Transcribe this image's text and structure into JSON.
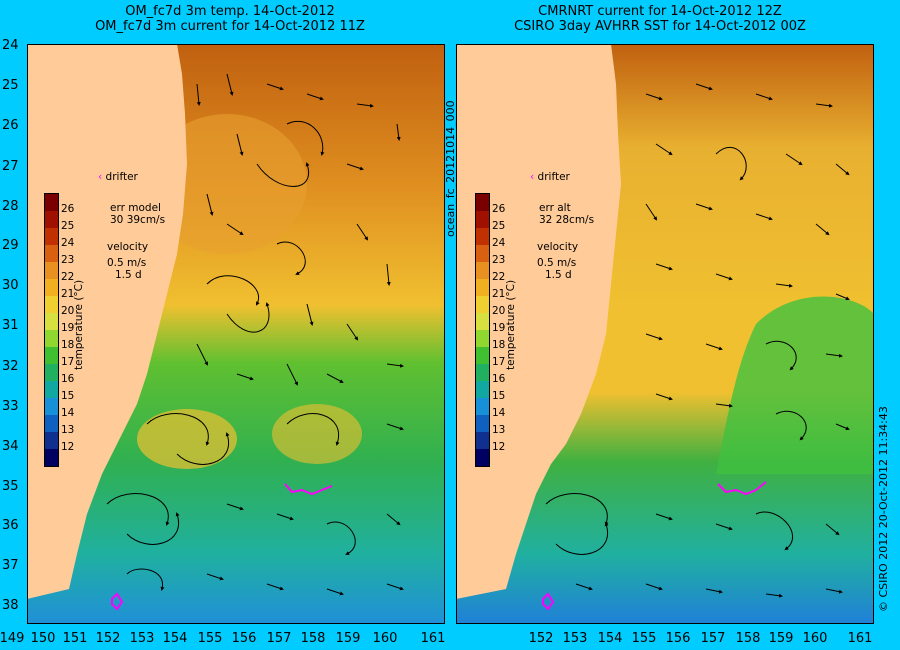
{
  "left_panel": {
    "title_line1": "OM_fc7d 3m temp. 14-Oct-2012",
    "title_line2": "OM_fc7d 3m current for 14-Oct-2012 11Z",
    "drifter_label": "drifter",
    "err_label": "err model",
    "err_value": "30 39cm/s",
    "velocity_label": "velocity",
    "velocity_scale": "0.5 m/s",
    "velocity_time": "1.5 d"
  },
  "right_panel": {
    "title_line1": "CMRNRT current for 14-Oct-2012 12Z",
    "title_line2": "CSIRO 3day AVHRR SST for 14-Oct-2012 00Z",
    "drifter_label": "drifter",
    "err_label": "err alt",
    "err_value": "32 28cm/s",
    "velocity_label": "velocity",
    "velocity_scale": "0.5 m/s",
    "velocity_time": "1.5 d"
  },
  "colorbar": {
    "label": "temperature (°C)",
    "ticks": [
      "26",
      "25",
      "24",
      "23",
      "22",
      "21",
      "20",
      "19",
      "18",
      "17",
      "16",
      "15",
      "14",
      "13",
      "12"
    ],
    "colors": [
      "#7a0000",
      "#a01000",
      "#c03000",
      "#d86010",
      "#e89020",
      "#f0b020",
      "#f0d030",
      "#d8e040",
      "#90d830",
      "#40c030",
      "#20b060",
      "#10a8a0",
      "#1890d8",
      "#1060c0",
      "#103090",
      "#000060"
    ]
  },
  "y_axis": {
    "ticks": [
      "24",
      "25",
      "26",
      "27",
      "28",
      "29",
      "30",
      "31",
      "32",
      "33",
      "34",
      "35",
      "36",
      "37",
      "38"
    ]
  },
  "x_axis_left": {
    "ticks": [
      "149",
      "150",
      "151",
      "152",
      "153",
      "154",
      "155",
      "156",
      "157",
      "158",
      "159",
      "160",
      "161"
    ]
  },
  "x_axis_right": {
    "ticks": [
      "152",
      "153",
      "154",
      "155",
      "156",
      "157",
      "158",
      "159",
      "160",
      "161"
    ]
  },
  "side_label_vertical": "ocean_fc_20121014_000",
  "credit_vertical": "© CSIRO 2012   20-Oct-2012 11:34:43",
  "colors": {
    "background": "#00ccff",
    "land": "#ffcc99",
    "drifter_marker": "#ff00ff"
  }
}
